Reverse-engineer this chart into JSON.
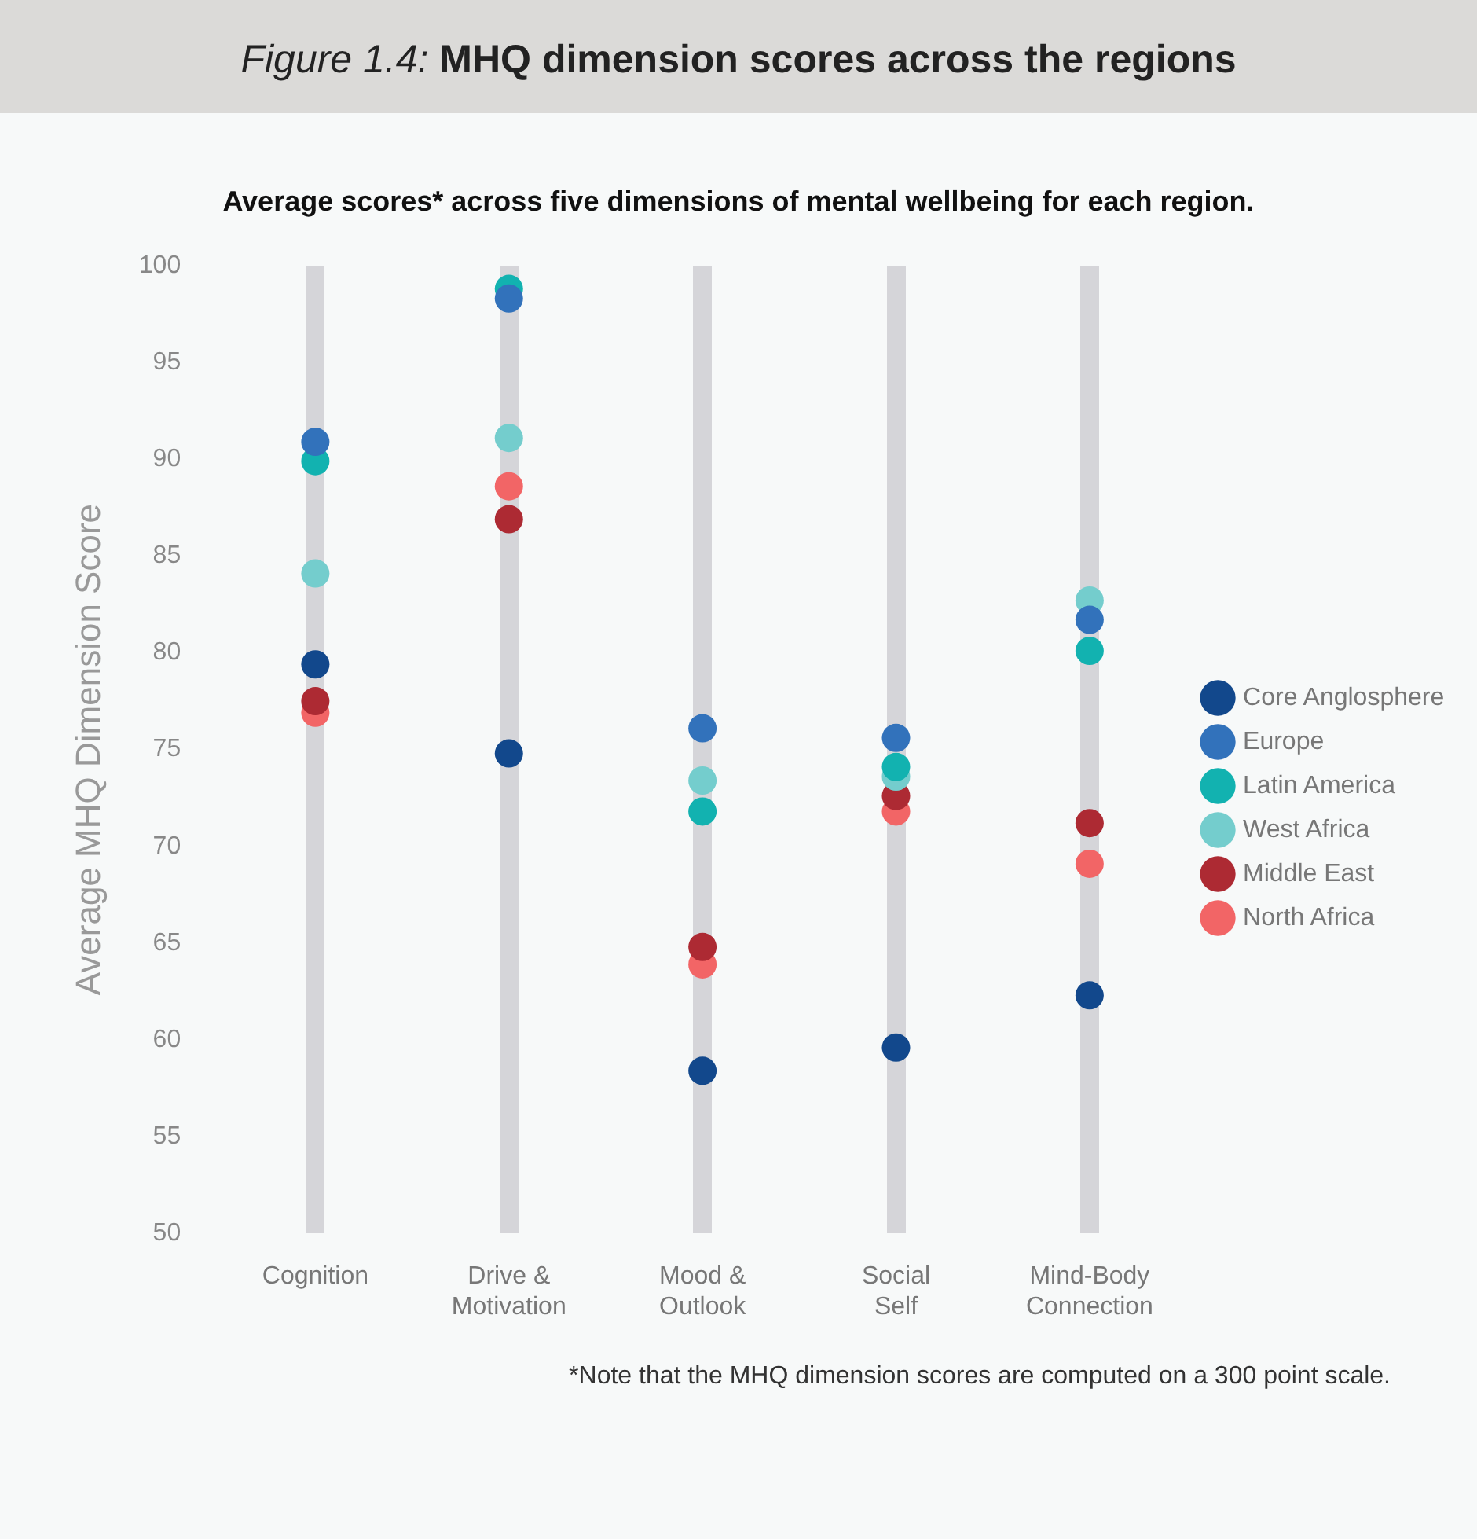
{
  "chart_data": {
    "type": "scatter",
    "title": "Figure 1.4: MHQ dimension scores across the regions",
    "subtitle": "Average scores* across five dimensions of mental wellbeing for each region.",
    "ylabel": "Average MHQ Dimension Score",
    "categories": [
      "Cognition",
      "Drive & Motivation",
      "Mood & Outlook",
      "Social Self",
      "Mind-Body Connection"
    ],
    "series": [
      {
        "name": "Core Anglosphere",
        "color": "#12488c",
        "values": [
          79.4,
          74.8,
          58.4,
          59.6,
          62.3
        ]
      },
      {
        "name": "Europe",
        "color": "#3272bb",
        "values": [
          90.9,
          98.3,
          76.1,
          75.6,
          81.7
        ]
      },
      {
        "name": "Latin America",
        "color": "#12b2b0",
        "values": [
          89.9,
          98.8,
          71.8,
          74.1,
          80.1
        ]
      },
      {
        "name": "West Africa",
        "color": "#74cdcd",
        "values": [
          84.1,
          91.1,
          73.4,
          73.6,
          82.7
        ]
      },
      {
        "name": "Middle East",
        "color": "#ad2a33",
        "values": [
          77.5,
          86.9,
          64.8,
          72.6,
          71.2
        ]
      },
      {
        "name": "North Africa",
        "color": "#f26566",
        "values": [
          76.9,
          88.6,
          63.9,
          71.8,
          69.1
        ]
      }
    ],
    "ylim": [
      50,
      100
    ],
    "yticks": [
      50,
      55,
      60,
      65,
      70,
      75,
      80,
      85,
      90,
      95,
      100
    ],
    "grid": "x",
    "legend": "right",
    "marker": "circle",
    "annotations": [
      "*Note that the MHQ dimension scores are computed on a 300 point scale."
    ]
  }
}
